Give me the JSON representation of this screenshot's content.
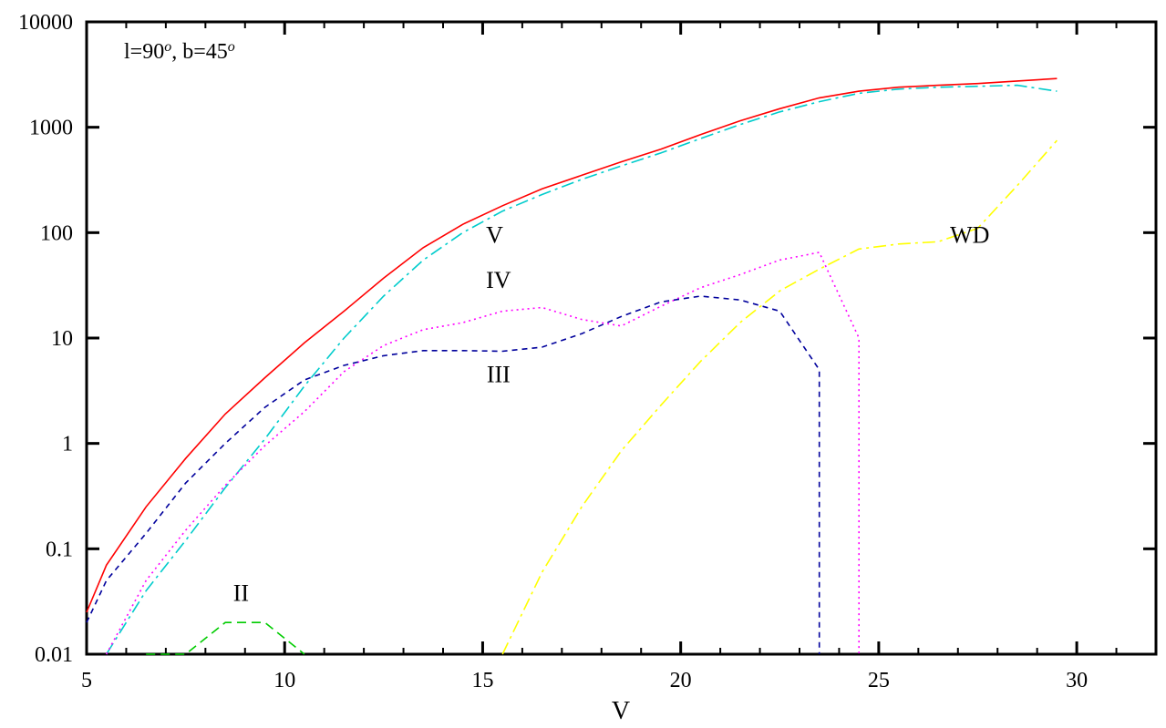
{
  "chart_data": {
    "type": "line",
    "title": "",
    "xlabel": "V",
    "ylabel": "",
    "xlim": [
      5,
      32
    ],
    "ylim": [
      0.01,
      10000
    ],
    "yscale": "log",
    "grid": false,
    "annotation": {
      "l_text": "l=90",
      "sup": "o",
      "b_text": ", b=45"
    },
    "x_ticks": [
      5,
      10,
      15,
      20,
      25,
      30
    ],
    "x_tick_labels": [
      "5",
      "10",
      "15",
      "20",
      "25",
      "30"
    ],
    "y_ticks": [
      0.01,
      0.1,
      1,
      10,
      100,
      1000,
      10000
    ],
    "y_tick_labels": [
      "0.01",
      "0.1",
      "1",
      "10",
      "100",
      "1000",
      "10000"
    ],
    "series": [
      {
        "label": "V",
        "label_at": [
          15.3,
          80
        ],
        "color": "#ff0000",
        "dash": "",
        "x": [
          5,
          5.5,
          6.5,
          7.5,
          8.5,
          9.5,
          10.5,
          11.5,
          12.5,
          13.5,
          14.5,
          15.5,
          16.5,
          17.5,
          18.5,
          19.5,
          20.5,
          21.5,
          22.5,
          23.5,
          24.5,
          25.5,
          26.5,
          27.5,
          28.5,
          29.5
        ],
        "y": [
          0.025,
          0.07,
          0.25,
          0.72,
          1.9,
          4.2,
          9,
          18,
          37,
          72,
          120,
          180,
          260,
          350,
          470,
          620,
          850,
          1150,
          1500,
          1900,
          2200,
          2400,
          2500,
          2600,
          2750,
          2900
        ]
      },
      {
        "label": "",
        "color": "#00cccc",
        "dash": "14,5,3,5",
        "x": [
          5.5,
          6.5,
          7.5,
          8.5,
          9.5,
          10.5,
          11.5,
          12.5,
          13.5,
          14.5,
          15.5,
          16.5,
          17.5,
          18.5,
          19.5,
          20.5,
          21.5,
          22.5,
          23.5,
          24.5,
          25.5,
          26.5,
          27.5,
          28.5,
          29.5
        ],
        "y": [
          0.01,
          0.04,
          0.12,
          0.38,
          1.1,
          3.5,
          10,
          25,
          55,
          100,
          160,
          230,
          320,
          430,
          570,
          780,
          1060,
          1400,
          1750,
          2100,
          2300,
          2400,
          2450,
          2500,
          2200
        ]
      },
      {
        "label": "IV",
        "label_at": [
          15.4,
          30
        ],
        "color": "#ff00ff",
        "dash": "2,4",
        "x": [
          5.5,
          6.5,
          7.5,
          8.5,
          9.5,
          10.5,
          11.5,
          12.5,
          13.5,
          14.5,
          15.5,
          16.5,
          17.5,
          18.5,
          19.5,
          20.5,
          21.5,
          22.5,
          23.5,
          24.5,
          24.5
        ],
        "y": [
          0.01,
          0.05,
          0.15,
          0.4,
          0.95,
          2,
          4.8,
          8.5,
          12,
          14,
          18,
          19.5,
          15,
          13,
          20,
          30,
          40,
          55,
          65,
          10,
          0.01
        ]
      },
      {
        "label": "III",
        "label_at": [
          15.4,
          3.8
        ],
        "color": "#00009c",
        "dash": "6,5",
        "x": [
          5,
          5.5,
          6.5,
          7.5,
          8.5,
          9.5,
          10.5,
          11.5,
          12.5,
          13.5,
          14.5,
          15.5,
          16.5,
          17.5,
          18.5,
          19.5,
          20.5,
          21.5,
          22.5,
          23.5,
          23.5
        ],
        "y": [
          0.02,
          0.05,
          0.14,
          0.42,
          1,
          2.2,
          4,
          5.5,
          6.8,
          7.6,
          7.6,
          7.5,
          8.2,
          11,
          16,
          22,
          25,
          23,
          18,
          5,
          0.01
        ]
      },
      {
        "label": "II",
        "label_at": [
          8.9,
          0.032
        ],
        "color": "#00cc00",
        "dash": "10,6",
        "x": [
          6.5,
          7.5,
          8.5,
          9.5,
          10.5
        ],
        "y": [
          0.01,
          0.01,
          0.02,
          0.02,
          0.01
        ]
      },
      {
        "label": "WD",
        "label_at": [
          27.3,
          80
        ],
        "color": "#ffff00",
        "dash": "14,5,3,5",
        "x": [
          15.5,
          16.5,
          17.5,
          18.5,
          19.5,
          20.5,
          21.5,
          22.5,
          23.5,
          24.5,
          25.5,
          26.5,
          27.5,
          28.5,
          29.5
        ],
        "y": [
          0.01,
          0.06,
          0.25,
          0.85,
          2.3,
          6,
          14,
          28,
          45,
          70,
          78,
          82,
          110,
          280,
          750
        ]
      }
    ]
  }
}
